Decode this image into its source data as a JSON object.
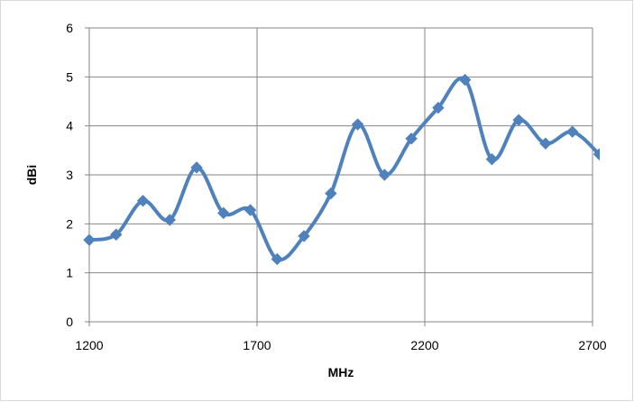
{
  "chart_data": {
    "type": "line",
    "title": "",
    "xlabel": "MHz",
    "ylabel": "dBi",
    "xlim": [
      1200,
      2700
    ],
    "ylim": [
      0,
      6
    ],
    "x_ticks": [
      1200,
      1700,
      2200,
      2700
    ],
    "y_ticks": [
      0,
      1,
      2,
      3,
      4,
      5,
      6
    ],
    "grid": true,
    "legend": "none",
    "color": "#4f81bd",
    "smooth": true,
    "marker": "diamond",
    "series": [
      {
        "x": [
          1200,
          1280,
          1360,
          1440,
          1520,
          1600,
          1680,
          1760,
          1840,
          1920,
          2000,
          2080,
          2160,
          2240,
          2320,
          2400,
          2480,
          2560,
          2640,
          2720
        ],
        "y": [
          1.67,
          1.78,
          2.47,
          2.08,
          3.15,
          2.22,
          2.28,
          1.28,
          1.75,
          2.62,
          4.03,
          3.0,
          3.74,
          4.37,
          4.94,
          3.32,
          4.12,
          3.64,
          3.88,
          3.42
        ]
      }
    ]
  }
}
